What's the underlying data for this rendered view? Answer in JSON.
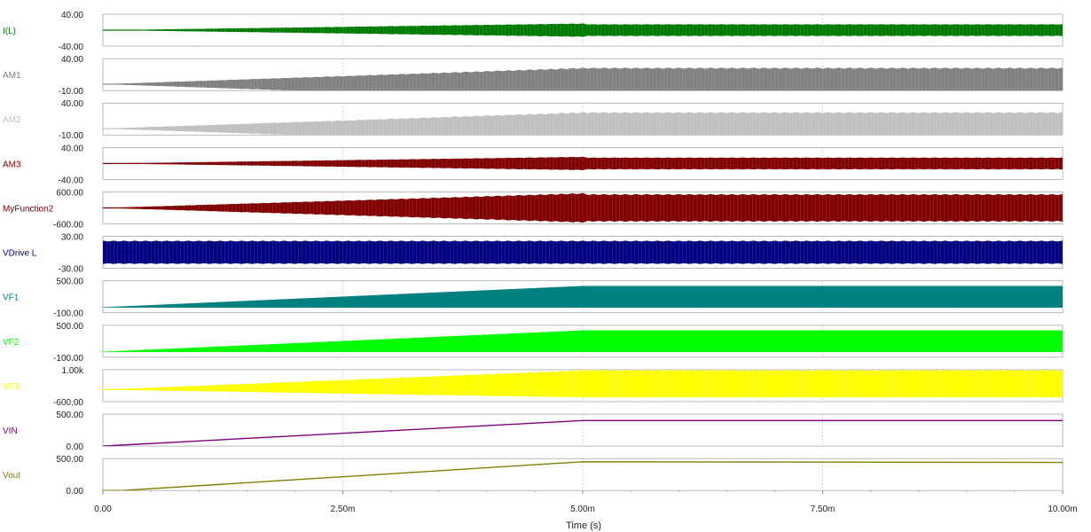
{
  "chart_data": {
    "type": "line",
    "xlabel": "Time (s)",
    "xlim": [
      0,
      0.01
    ],
    "x_ticks": [
      "0.00",
      "2.50m",
      "5.00m",
      "7.50m",
      "10.00m"
    ],
    "grid": true,
    "legend": "left",
    "series": [
      {
        "name": "I(L)",
        "color": "#007a00",
        "ymax_label": "40.00",
        "ymin_label": "-40.00",
        "ylim": [
          -40,
          40
        ],
        "shape": "envelope",
        "baseline": 0,
        "start": 0,
        "peak": 17,
        "end": 15
      },
      {
        "name": "AM1",
        "color": "#808080",
        "ymax_label": "40.00",
        "ymin_label": "-10.00",
        "ylim": [
          -10,
          40
        ],
        "shape": "envelope",
        "baseline": 0,
        "start": 0,
        "peak": 26,
        "end": 26
      },
      {
        "name": "AM2",
        "color": "#c0c0c0",
        "ymax_label": "40.00",
        "ymin_label": "-10.00",
        "ylim": [
          -10,
          40
        ],
        "shape": "envelope",
        "baseline": 0,
        "start": 0,
        "peak": 26,
        "end": 26
      },
      {
        "name": "AM3",
        "color": "#800000",
        "ymax_label": "40.00",
        "ymin_label": "-40.00",
        "ylim": [
          -40,
          40
        ],
        "shape": "envelope",
        "baseline": 0,
        "start": 0,
        "peak": 17,
        "end": 15
      },
      {
        "name": "MyFunction2",
        "color": "#800000",
        "ymax_label": "600.00",
        "ymin_label": "-600.00",
        "ylim": [
          -600,
          600
        ],
        "shape": "envelope",
        "baseline": 0,
        "start": 0,
        "peak": 560,
        "end": 520
      },
      {
        "name": "VDrive L",
        "color": "#000080",
        "ymax_label": "30.00",
        "ymin_label": "-30.00",
        "ylim": [
          -30,
          30
        ],
        "shape": "envelope",
        "baseline": 0,
        "start": 22,
        "peak": 22,
        "end": 22
      },
      {
        "name": "VF1",
        "color": "#008080",
        "ymax_label": "500.00",
        "ymin_label": "-100.00",
        "ylim": [
          -100,
          500
        ],
        "shape": "fan",
        "baseline": 0,
        "start": 0,
        "peak": 400,
        "end": 400
      },
      {
        "name": "VF2",
        "color": "#00ff00",
        "ymax_label": "500.00",
        "ymin_label": "-100.00",
        "ylim": [
          -100,
          500
        ],
        "shape": "fan",
        "baseline": 0,
        "start": 0,
        "peak": 400,
        "end": 400
      },
      {
        "name": "VF3",
        "color": "#ffff00",
        "ymax_label": "1.00k",
        "ymin_label": "-600.00",
        "ylim": [
          -600,
          1000
        ],
        "shape": "envelope",
        "baseline": 0,
        "start": 0,
        "peak": 1000,
        "end": 1000,
        "low_peak": -400
      },
      {
        "name": "VIN",
        "color": "#800080",
        "ymax_label": "500.00",
        "ymin_label": "0.00",
        "ylim": [
          0,
          500
        ],
        "shape": "ramp",
        "x": [
          0,
          0.005,
          0.01
        ],
        "y": [
          0,
          400,
          400
        ]
      },
      {
        "name": "Vout",
        "color": "#808000",
        "ymax_label": "500.00",
        "ymin_label": "0.00",
        "ylim": [
          0,
          500
        ],
        "shape": "ramp",
        "x": [
          0,
          0.0002,
          0.005,
          0.01
        ],
        "y": [
          0,
          0,
          450,
          440
        ]
      }
    ]
  }
}
